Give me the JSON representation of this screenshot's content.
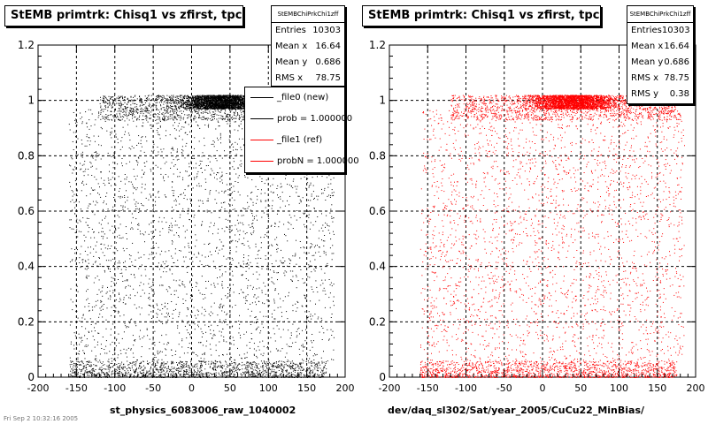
{
  "chart_data": [
    {
      "type": "scatter",
      "title": "StEMB primtrk: Chisq1 vs zfirst, tpc",
      "xlabel": "st_physics_6083006_raw_1040002",
      "ylabel": "",
      "xlim": [
        -200,
        200
      ],
      "ylim": [
        0,
        1.2
      ],
      "xticks": [
        "-200",
        "-150",
        "-100",
        "-50",
        "0",
        "50",
        "100",
        "150",
        "200"
      ],
      "yticks": [
        "0",
        "0.2",
        "0.4",
        "0.6",
        "0.8",
        "1",
        "1.2"
      ],
      "grid": true,
      "marker_color": "#000000",
      "distribution": {
        "x_range": [
          -160,
          185
        ],
        "dense_band_y": [
          0.97,
          1.02
        ],
        "dense_band_x_center": 40,
        "low_band_y": [
          0.0,
          0.06
        ],
        "uniform_region_y": [
          0.06,
          0.97
        ]
      },
      "stats": {
        "header": "StEMBChiPrkChi1zff",
        "rows": [
          {
            "label": "Entries",
            "value": "10303"
          },
          {
            "label": "Mean x",
            "value": "16.64"
          },
          {
            "label": "Mean y",
            "value": "0.686"
          },
          {
            "label": "RMS x",
            "value": "78.75"
          }
        ]
      },
      "legend": [
        {
          "label": "_file0 (new)",
          "color": "#000000"
        },
        {
          "label": "prob = 1.000000",
          "color": "#000000"
        },
        {
          "label": "_file1 (ref)",
          "color": "#ff0000"
        },
        {
          "label": "probN = 1.000000",
          "color": "#ff0000"
        }
      ]
    },
    {
      "type": "scatter",
      "title": "StEMB primtrk: Chisq1 vs zfirst, tpc",
      "xlabel": "dev/daq_sl302/Sat/year_2005/CuCu22_MinBias/",
      "ylabel": "",
      "xlim": [
        -200,
        200
      ],
      "ylim": [
        0,
        1.2
      ],
      "xticks": [
        "-200",
        "-150",
        "-100",
        "-50",
        "0",
        "50",
        "100",
        "150",
        "200"
      ],
      "yticks": [
        "0",
        "0.2",
        "0.4",
        "0.6",
        "0.8",
        "1",
        "1.2"
      ],
      "grid": true,
      "marker_color": "#ff0000",
      "distribution": {
        "x_range": [
          -160,
          185
        ],
        "dense_band_y": [
          0.97,
          1.02
        ],
        "dense_band_x_center": 40,
        "low_band_y": [
          0.0,
          0.06
        ],
        "uniform_region_y": [
          0.06,
          0.97
        ]
      },
      "stats": {
        "header": "StEMBChiPrkChi1zff",
        "rows": [
          {
            "label": "Entries",
            "value": "10303"
          },
          {
            "label": "Mean x",
            "value": "16.64"
          },
          {
            "label": "Mean y",
            "value": "0.686"
          },
          {
            "label": "RMS x",
            "value": "78.75"
          },
          {
            "label": "RMS y",
            "value": "0.38"
          }
        ]
      }
    }
  ],
  "footer": "Fri Sep  2 10:32:16 2005"
}
